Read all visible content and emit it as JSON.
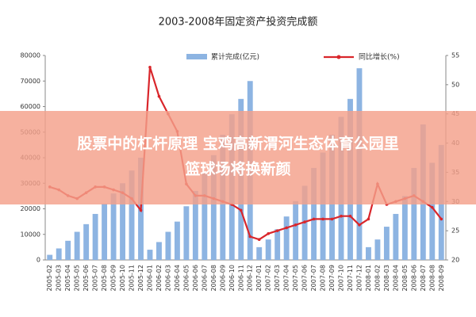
{
  "chart_data": {
    "type": "bar_line",
    "title": "2003-2008年固定资产投资完成额",
    "categories": [
      "2005-02",
      "2005-03",
      "2005-04",
      "2005-05",
      "2005-06",
      "2005-07",
      "2005-08",
      "2005-09",
      "2005-10",
      "2005-11",
      "2005-12",
      "2006-01",
      "2006-02",
      "2006-03",
      "2006-04",
      "2006-05",
      "2006-06",
      "2006-07",
      "2006-08",
      "2006-09",
      "2006-10",
      "2006-11",
      "2006-12",
      "2007-01",
      "2007-02",
      "2007-03",
      "2007-04",
      "2007-05",
      "2007-06",
      "2007-07",
      "2007-08",
      "2007-09",
      "2007-10",
      "2007-11",
      "2007-12",
      "2008-01",
      "2008-02",
      "2008-03",
      "2008-04",
      "2008-05",
      "2008-06",
      "2008-07",
      "2008-08",
      "2008-09"
    ],
    "series": [
      {
        "name": "累计完成(亿元)",
        "color": "#8db4e2",
        "values": [
          2000,
          4500,
          7500,
          11000,
          14000,
          18000,
          22000,
          26000,
          30000,
          35000,
          40000,
          4000,
          7000,
          11000,
          15000,
          21000,
          27000,
          34000,
          41000,
          49000,
          57000,
          63000,
          70000,
          5000,
          8000,
          12000,
          17000,
          23000,
          29000,
          36000,
          42000,
          49000,
          56000,
          63000,
          75000,
          5000,
          8000,
          13000,
          18000,
          25000,
          36000,
          53000,
          38000,
          45000
        ]
      },
      {
        "name": "同比增长(%)",
        "color": "#d9262b",
        "axis": "y2",
        "values": [
          32.5,
          32,
          31,
          30.5,
          31.5,
          32.5,
          32.5,
          32,
          31.5,
          30.5,
          28.5,
          53,
          48,
          45,
          42,
          33,
          31,
          31,
          30.5,
          30,
          29.5,
          28.5,
          24,
          23.5,
          24.5,
          25,
          25.5,
          26,
          26.5,
          27,
          27,
          27,
          27.5,
          27.5,
          26,
          27,
          33,
          29.5,
          30,
          30.5,
          31,
          30,
          29,
          27
        ]
      }
    ],
    "ylim": [
      0,
      80000
    ],
    "yticks": [
      0,
      10000,
      20000,
      30000,
      40000,
      50000,
      60000,
      70000,
      80000
    ],
    "y2lim": [
      20,
      55
    ],
    "y2ticks": [
      20,
      25,
      30,
      35,
      40,
      45,
      50,
      55
    ]
  },
  "banner": {
    "line1": "股票中的杠杆原理 宝鸡高新渭河生态体育公园里",
    "line2": "篮球场将换新颜"
  }
}
